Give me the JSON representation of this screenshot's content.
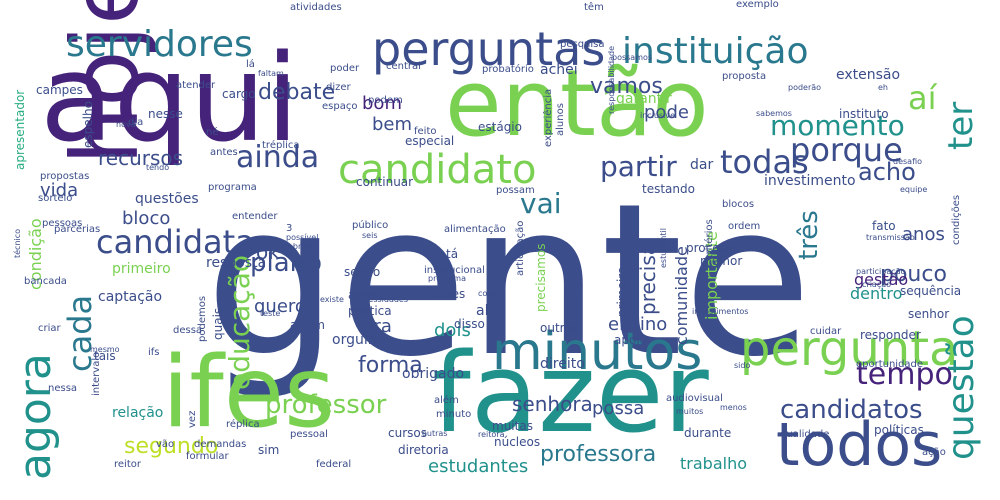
{
  "palette": {
    "purple": "#46237a",
    "indigo": "#3b4d8a",
    "slate": "#31688e",
    "blue": "#2a788e",
    "teal": "#21918c",
    "green": "#27ad81",
    "lime": "#7ad151",
    "yellow": "#bddf26"
  },
  "words": [
    {
      "text": "gente",
      "color": "indigo"
    },
    {
      "text": "aqui",
      "color": "purple"
    },
    {
      "text": "então",
      "color": "lime"
    },
    {
      "text": "hoje",
      "color": "purple"
    },
    {
      "text": "fazer",
      "color": "teal"
    },
    {
      "text": "ifes",
      "color": "lime"
    },
    {
      "text": "minutos",
      "color": "blue"
    },
    {
      "text": "todos",
      "color": "indigo"
    },
    {
      "text": "perguntas",
      "color": "indigo"
    },
    {
      "text": "servidores",
      "color": "blue"
    },
    {
      "text": "instituição",
      "color": "blue"
    },
    {
      "text": "candidato",
      "color": "lime"
    },
    {
      "text": "pergunta",
      "color": "lime"
    },
    {
      "text": "agora",
      "color": "teal"
    },
    {
      "text": "candidata",
      "color": "indigo"
    },
    {
      "text": "cada",
      "color": "blue"
    },
    {
      "text": "educação",
      "color": "lime"
    },
    {
      "text": "questão",
      "color": "teal"
    },
    {
      "text": "porque",
      "color": "indigo"
    },
    {
      "text": "ainda",
      "color": "indigo"
    },
    {
      "text": "todas",
      "color": "indigo"
    },
    {
      "text": "vai",
      "color": "blue"
    },
    {
      "text": "aí",
      "color": "lime"
    },
    {
      "text": "ter",
      "color": "teal"
    },
    {
      "text": "momento",
      "color": "teal"
    },
    {
      "text": "partir",
      "color": "indigo"
    },
    {
      "text": "candidatos",
      "color": "indigo"
    },
    {
      "text": "tempo",
      "color": "purple"
    },
    {
      "text": "plano",
      "color": "indigo"
    },
    {
      "text": "professor",
      "color": "lime"
    },
    {
      "text": "professora",
      "color": "blue"
    },
    {
      "text": "forma",
      "color": "indigo"
    },
    {
      "text": "recursos",
      "color": "indigo"
    },
    {
      "text": "três",
      "color": "blue"
    },
    {
      "text": "acho",
      "color": "indigo"
    },
    {
      "text": "vamos",
      "color": "indigo"
    },
    {
      "text": "debate",
      "color": "indigo"
    },
    {
      "text": "bom",
      "color": "purple"
    },
    {
      "text": "bem",
      "color": "indigo"
    },
    {
      "text": "pode",
      "color": "indigo"
    },
    {
      "text": "precisa",
      "color": "indigo"
    },
    {
      "text": "estudantes",
      "color": "teal"
    },
    {
      "text": "segundo",
      "color": "yellow"
    },
    {
      "text": "senhora",
      "color": "indigo"
    },
    {
      "text": "pouco",
      "color": "indigo"
    },
    {
      "text": "comunidade",
      "color": "indigo"
    },
    {
      "text": "bloco",
      "color": "indigo"
    },
    {
      "text": "ok",
      "color": "indigo"
    },
    {
      "text": "dois",
      "color": "teal"
    },
    {
      "text": "gestão",
      "color": "purple"
    },
    {
      "text": "possa",
      "color": "indigo"
    },
    {
      "text": "vida",
      "color": "indigo"
    },
    {
      "text": "anos",
      "color": "indigo"
    },
    {
      "text": "condição",
      "color": "lime"
    },
    {
      "text": "trabalho",
      "color": "teal"
    },
    {
      "text": "dentro",
      "color": "teal"
    },
    {
      "text": "primeiro",
      "color": "lime"
    },
    {
      "text": "ensino",
      "color": "indigo"
    },
    {
      "text": "quero",
      "color": "indigo"
    },
    {
      "text": "pra",
      "color": "indigo"
    },
    {
      "text": "importante",
      "color": "lime"
    },
    {
      "text": "extensão",
      "color": "indigo"
    },
    {
      "text": "investimento",
      "color": "indigo"
    },
    {
      "text": "captação",
      "color": "indigo"
    },
    {
      "text": "dar",
      "color": "indigo"
    },
    {
      "text": "garantir",
      "color": "lime"
    },
    {
      "text": "achei",
      "color": "indigo"
    },
    {
      "text": "questões",
      "color": "indigo"
    },
    {
      "text": "resposta",
      "color": "indigo"
    },
    {
      "text": "relação",
      "color": "teal"
    },
    {
      "text": "obrigado",
      "color": "indigo"
    },
    {
      "text": "orgulho",
      "color": "indigo"
    },
    {
      "text": "sendo",
      "color": "indigo"
    },
    {
      "text": "direito",
      "color": "indigo"
    },
    {
      "text": "sequência",
      "color": "indigo"
    },
    {
      "text": "instituto",
      "color": "indigo"
    },
    {
      "text": "apresentador",
      "color": "green"
    },
    {
      "text": "campes",
      "color": "indigo"
    },
    {
      "text": "espelho",
      "color": "indigo"
    },
    {
      "text": "nesse",
      "color": "indigo"
    },
    {
      "text": "cargo",
      "color": "indigo"
    },
    {
      "text": "especial",
      "color": "indigo"
    },
    {
      "text": "estágio",
      "color": "indigo"
    },
    {
      "text": "feito",
      "color": "indigo"
    },
    {
      "text": "continuar",
      "color": "indigo"
    },
    {
      "text": "testando",
      "color": "indigo"
    },
    {
      "text": "blocos",
      "color": "indigo"
    },
    {
      "text": "alimentação",
      "color": "indigo"
    },
    {
      "text": "articulação",
      "color": "indigo"
    },
    {
      "text": "processo",
      "color": "indigo"
    },
    {
      "text": "melhor",
      "color": "indigo"
    },
    {
      "text": "precisamos",
      "color": "lime"
    },
    {
      "text": "primeira",
      "color": "indigo"
    },
    {
      "text": "outros",
      "color": "indigo"
    },
    {
      "text": "apoio",
      "color": "indigo"
    },
    {
      "text": "disso",
      "color": "indigo"
    },
    {
      "text": "dores",
      "color": "indigo"
    },
    {
      "text": "áreas",
      "color": "indigo"
    },
    {
      "text": "política",
      "color": "indigo"
    },
    {
      "text": "assim",
      "color": "indigo"
    },
    {
      "text": "tais",
      "color": "indigo"
    },
    {
      "text": "ifs",
      "color": "indigo"
    },
    {
      "text": "quais",
      "color": "indigo"
    },
    {
      "text": "podemos",
      "color": "indigo"
    },
    {
      "text": "senhor",
      "color": "indigo"
    },
    {
      "text": "responder",
      "color": "indigo"
    },
    {
      "text": "cuidar",
      "color": "indigo"
    },
    {
      "text": "tá",
      "color": "indigo"
    },
    {
      "text": "fato",
      "color": "indigo"
    },
    {
      "text": "ali",
      "color": "indigo"
    },
    {
      "text": "sim",
      "color": "indigo"
    },
    {
      "text": "durante",
      "color": "indigo"
    },
    {
      "text": "qualidade",
      "color": "indigo"
    },
    {
      "text": "políticas",
      "color": "indigo"
    },
    {
      "text": "diretoria",
      "color": "indigo"
    },
    {
      "text": "núcleos",
      "color": "indigo"
    },
    {
      "text": "muitas",
      "color": "indigo"
    },
    {
      "text": "cursos",
      "color": "indigo"
    },
    {
      "text": "demandas",
      "color": "indigo"
    },
    {
      "text": "formular",
      "color": "indigo"
    },
    {
      "text": "reitor",
      "color": "indigo"
    },
    {
      "text": "federal",
      "color": "indigo"
    },
    {
      "text": "ação",
      "color": "indigo"
    },
    {
      "text": "minuto",
      "color": "indigo"
    },
    {
      "text": "além",
      "color": "indigo"
    },
    {
      "text": "audiovisual",
      "color": "indigo"
    },
    {
      "text": "muitos",
      "color": "indigo"
    },
    {
      "text": "menos",
      "color": "indigo"
    },
    {
      "text": "sido",
      "color": "indigo"
    },
    {
      "text": "oportunidade",
      "color": "indigo"
    },
    {
      "text": "réplica",
      "color": "indigo"
    },
    {
      "text": "tréplica",
      "color": "indigo"
    },
    {
      "text": "vão",
      "color": "indigo"
    },
    {
      "text": "vez",
      "color": "indigo"
    },
    {
      "text": "pessoal",
      "color": "indigo"
    },
    {
      "text": "outras",
      "color": "indigo"
    },
    {
      "text": "mesmo",
      "color": "indigo"
    },
    {
      "text": "dessa",
      "color": "indigo"
    },
    {
      "text": "nessa",
      "color": "indigo"
    },
    {
      "text": "intervalo",
      "color": "indigo"
    },
    {
      "text": "criar",
      "color": "indigo"
    },
    {
      "text": "bancada",
      "color": "indigo"
    },
    {
      "text": "técnico",
      "color": "indigo"
    },
    {
      "text": "parcerias",
      "color": "indigo"
    },
    {
      "text": "pessoas",
      "color": "indigo"
    },
    {
      "text": "sorteio",
      "color": "indigo"
    },
    {
      "text": "propostas",
      "color": "indigo"
    },
    {
      "text": "proposta",
      "color": "indigo"
    },
    {
      "text": "dia",
      "color": "indigo"
    },
    {
      "text": "antes",
      "color": "indigo"
    },
    {
      "text": "programa",
      "color": "indigo"
    },
    {
      "text": "possam",
      "color": "indigo"
    },
    {
      "text": "entender",
      "color": "indigo"
    },
    {
      "text": "público",
      "color": "indigo"
    },
    {
      "text": "possível",
      "color": "indigo"
    },
    {
      "text": "obras",
      "color": "indigo"
    },
    {
      "text": "seis",
      "color": "indigo"
    },
    {
      "text": "ordem",
      "color": "indigo"
    },
    {
      "text": "critérios",
      "color": "indigo"
    },
    {
      "text": "alô",
      "color": "indigo"
    },
    {
      "text": "estudantil",
      "color": "indigo"
    },
    {
      "text": "participação",
      "color": "indigo"
    },
    {
      "text": "criação",
      "color": "indigo"
    },
    {
      "text": "transmissão",
      "color": "indigo"
    },
    {
      "text": "condições",
      "color": "indigo"
    },
    {
      "text": "equipe",
      "color": "indigo"
    },
    {
      "text": "desafio",
      "color": "indigo"
    },
    {
      "text": "institucional",
      "color": "indigo"
    },
    {
      "text": "problema",
      "color": "indigo"
    },
    {
      "text": "coisa",
      "color": "indigo"
    },
    {
      "text": "existe",
      "color": "indigo"
    },
    {
      "text": "necessidades",
      "color": "indigo"
    },
    {
      "text": "teste",
      "color": "indigo"
    },
    {
      "text": "investimentos",
      "color": "indigo"
    },
    {
      "text": "reitora",
      "color": "indigo"
    },
    {
      "text": "atividades",
      "color": "indigo"
    },
    {
      "text": "têm",
      "color": "indigo"
    },
    {
      "text": "exemplo",
      "color": "indigo"
    },
    {
      "text": "pesquisa",
      "color": "indigo"
    },
    {
      "text": "possamos",
      "color": "indigo"
    },
    {
      "text": "probatório",
      "color": "indigo"
    },
    {
      "text": "central",
      "color": "indigo"
    },
    {
      "text": "dizer",
      "color": "indigo"
    },
    {
      "text": "espaço",
      "color": "indigo"
    },
    {
      "text": "podem",
      "color": "indigo"
    },
    {
      "text": "poder",
      "color": "indigo"
    },
    {
      "text": "faltam",
      "color": "indigo"
    },
    {
      "text": "lá",
      "color": "indigo"
    },
    {
      "text": "atender",
      "color": "indigo"
    },
    {
      "text": "né",
      "color": "indigo"
    },
    {
      "text": "tendo",
      "color": "indigo"
    },
    {
      "text": "nova",
      "color": "indigo"
    },
    {
      "text": "responsabilidade",
      "color": "indigo"
    },
    {
      "text": "experiência",
      "color": "indigo"
    },
    {
      "text": "alunos",
      "color": "indigo"
    },
    {
      "text": "inclusive",
      "color": "indigo"
    },
    {
      "text": "sabemos",
      "color": "indigo"
    },
    {
      "text": "poderão",
      "color": "indigo"
    },
    {
      "text": "eh",
      "color": "indigo"
    },
    {
      "text": "3",
      "color": "indigo"
    }
  ]
}
